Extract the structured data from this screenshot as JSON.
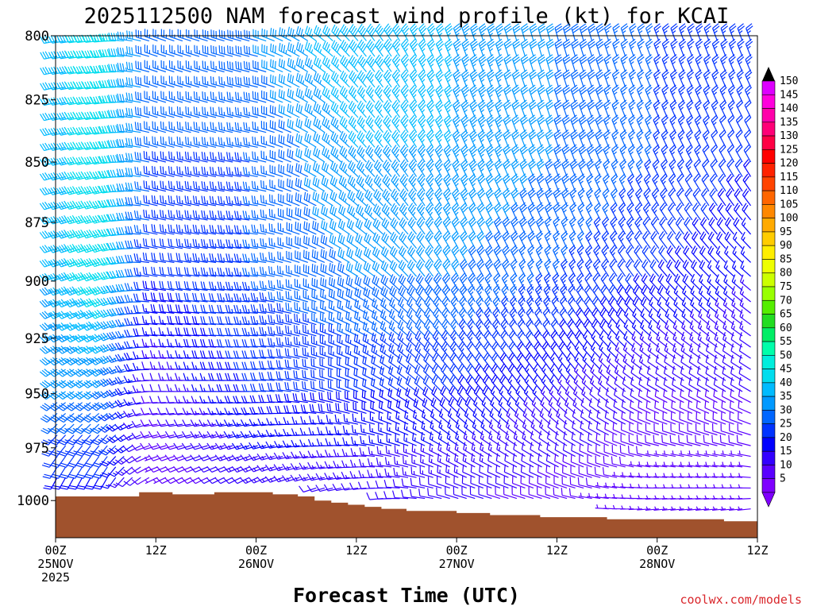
{
  "chart_data": {
    "type": "wind-barb-profile",
    "title": "2025112500 NAM forecast wind profile (kt) for KCAI",
    "xlabel": "Forecast Time (UTC)",
    "credit": "coolwx.com/models",
    "x_range_hours": [
      0,
      84
    ],
    "y_range_hpa": [
      800,
      1018
    ],
    "y_ticks": [
      {
        "label": "800",
        "value": 800
      },
      {
        "label": "825",
        "value": 825
      },
      {
        "label": "850",
        "value": 850
      },
      {
        "label": "875",
        "value": 875
      },
      {
        "label": "900",
        "value": 900
      },
      {
        "label": "925",
        "value": 925
      },
      {
        "label": "950",
        "value": 950
      },
      {
        "label": "975",
        "value": 975
      },
      {
        "label": "1000",
        "value": 1000
      }
    ],
    "x_ticks": [
      {
        "hour": 0,
        "line1": "00Z",
        "line2": "25NOV",
        "line3": "2025"
      },
      {
        "hour": 12,
        "line1": "12Z",
        "line2": "",
        "line3": ""
      },
      {
        "hour": 24,
        "line1": "00Z",
        "line2": "26NOV",
        "line3": ""
      },
      {
        "hour": 36,
        "line1": "12Z",
        "line2": "",
        "line3": ""
      },
      {
        "hour": 48,
        "line1": "00Z",
        "line2": "27NOV",
        "line3": ""
      },
      {
        "hour": 60,
        "line1": "12Z",
        "line2": "",
        "line3": ""
      },
      {
        "hour": 72,
        "line1": "00Z",
        "line2": "28NOV",
        "line3": ""
      },
      {
        "hour": 84,
        "line1": "12Z",
        "line2": "",
        "line3": ""
      }
    ],
    "surface_pressure_hpa": [
      {
        "hour": 0,
        "p": 998
      },
      {
        "hour": 4,
        "p": 998
      },
      {
        "hour": 8,
        "p": 998
      },
      {
        "hour": 10,
        "p": 996
      },
      {
        "hour": 14,
        "p": 997
      },
      {
        "hour": 19,
        "p": 996
      },
      {
        "hour": 26,
        "p": 997
      },
      {
        "hour": 29,
        "p": 998
      },
      {
        "hour": 31,
        "p": 1000
      },
      {
        "hour": 33,
        "p": 1001
      },
      {
        "hour": 35,
        "p": 1002
      },
      {
        "hour": 37,
        "p": 1003
      },
      {
        "hour": 39,
        "p": 1004
      },
      {
        "hour": 42,
        "p": 1005
      },
      {
        "hour": 48,
        "p": 1006
      },
      {
        "hour": 52,
        "p": 1007
      },
      {
        "hour": 58,
        "p": 1008
      },
      {
        "hour": 66,
        "p": 1009
      },
      {
        "hour": 72,
        "p": 1009
      },
      {
        "hour": 80,
        "p": 1010
      },
      {
        "hour": 84,
        "p": 1010
      }
    ],
    "colorbar": {
      "units": "kt",
      "levels": [
        5,
        10,
        15,
        20,
        25,
        30,
        35,
        40,
        45,
        50,
        55,
        60,
        65,
        70,
        75,
        80,
        85,
        90,
        95,
        100,
        105,
        110,
        115,
        120,
        125,
        130,
        135,
        140,
        145,
        150
      ],
      "colors": [
        "#7f00ff",
        "#5a00ff",
        "#3300ff",
        "#0000ff",
        "#0033ff",
        "#0066ff",
        "#0099ff",
        "#00bbff",
        "#00ddee",
        "#00eedd",
        "#00ffaa",
        "#00ee66",
        "#22dd22",
        "#55ee00",
        "#99ff00",
        "#ccff00",
        "#eeff00",
        "#ffee00",
        "#ffcc00",
        "#ffaa00",
        "#ff8800",
        "#ff6600",
        "#ff4400",
        "#ff2200",
        "#ff0000",
        "#ff0044",
        "#ff0077",
        "#ff00aa",
        "#ff00dd",
        "#dd00ff"
      ]
    },
    "wind_barbs": [
      {
        "hour": 0,
        "p": 800,
        "spd": 35,
        "dir": 260
      },
      {
        "hour": 0,
        "p": 850,
        "spd": 35,
        "dir": 255
      },
      {
        "hour": 0,
        "p": 900,
        "spd": 35,
        "dir": 250
      },
      {
        "hour": 0,
        "p": 950,
        "spd": 30,
        "dir": 235
      },
      {
        "hour": 0,
        "p": 985,
        "spd": 15,
        "dir": 210
      },
      {
        "hour": 6,
        "p": 800,
        "spd": 45,
        "dir": 265
      },
      {
        "hour": 6,
        "p": 850,
        "spd": 45,
        "dir": 260
      },
      {
        "hour": 6,
        "p": 900,
        "spd": 45,
        "dir": 250
      },
      {
        "hour": 6,
        "p": 950,
        "spd": 30,
        "dir": 235
      },
      {
        "hour": 12,
        "p": 800,
        "spd": 25,
        "dir": 290
      },
      {
        "hour": 12,
        "p": 850,
        "spd": 25,
        "dir": 285
      },
      {
        "hour": 12,
        "p": 900,
        "spd": 20,
        "dir": 280
      },
      {
        "hour": 12,
        "p": 950,
        "spd": 10,
        "dir": 270
      },
      {
        "hour": 24,
        "p": 800,
        "spd": 30,
        "dir": 285
      },
      {
        "hour": 24,
        "p": 850,
        "spd": 25,
        "dir": 280
      },
      {
        "hour": 24,
        "p": 900,
        "spd": 25,
        "dir": 275
      },
      {
        "hour": 24,
        "p": 950,
        "spd": 20,
        "dir": 270
      },
      {
        "hour": 36,
        "p": 800,
        "spd": 40,
        "dir": 320
      },
      {
        "hour": 36,
        "p": 850,
        "spd": 35,
        "dir": 315
      },
      {
        "hour": 36,
        "p": 900,
        "spd": 30,
        "dir": 300
      },
      {
        "hour": 36,
        "p": 950,
        "spd": 20,
        "dir": 290
      },
      {
        "hour": 48,
        "p": 800,
        "spd": 35,
        "dir": 340
      },
      {
        "hour": 48,
        "p": 850,
        "spd": 35,
        "dir": 335
      },
      {
        "hour": 48,
        "p": 900,
        "spd": 30,
        "dir": 330
      },
      {
        "hour": 48,
        "p": 950,
        "spd": 20,
        "dir": 320
      },
      {
        "hour": 60,
        "p": 800,
        "spd": 30,
        "dir": 345
      },
      {
        "hour": 60,
        "p": 850,
        "spd": 30,
        "dir": 340
      },
      {
        "hour": 60,
        "p": 900,
        "spd": 25,
        "dir": 335
      },
      {
        "hour": 60,
        "p": 950,
        "spd": 15,
        "dir": 320
      },
      {
        "hour": 72,
        "p": 800,
        "spd": 25,
        "dir": 340
      },
      {
        "hour": 72,
        "p": 850,
        "spd": 25,
        "dir": 335
      },
      {
        "hour": 72,
        "p": 900,
        "spd": 20,
        "dir": 320
      },
      {
        "hour": 72,
        "p": 950,
        "spd": 10,
        "dir": 300
      },
      {
        "hour": 84,
        "p": 800,
        "spd": 25,
        "dir": 340
      },
      {
        "hour": 84,
        "p": 850,
        "spd": 20,
        "dir": 330
      },
      {
        "hour": 84,
        "p": 900,
        "spd": 15,
        "dir": 310
      },
      {
        "hour": 84,
        "p": 950,
        "spd": 10,
        "dir": 300
      }
    ]
  }
}
